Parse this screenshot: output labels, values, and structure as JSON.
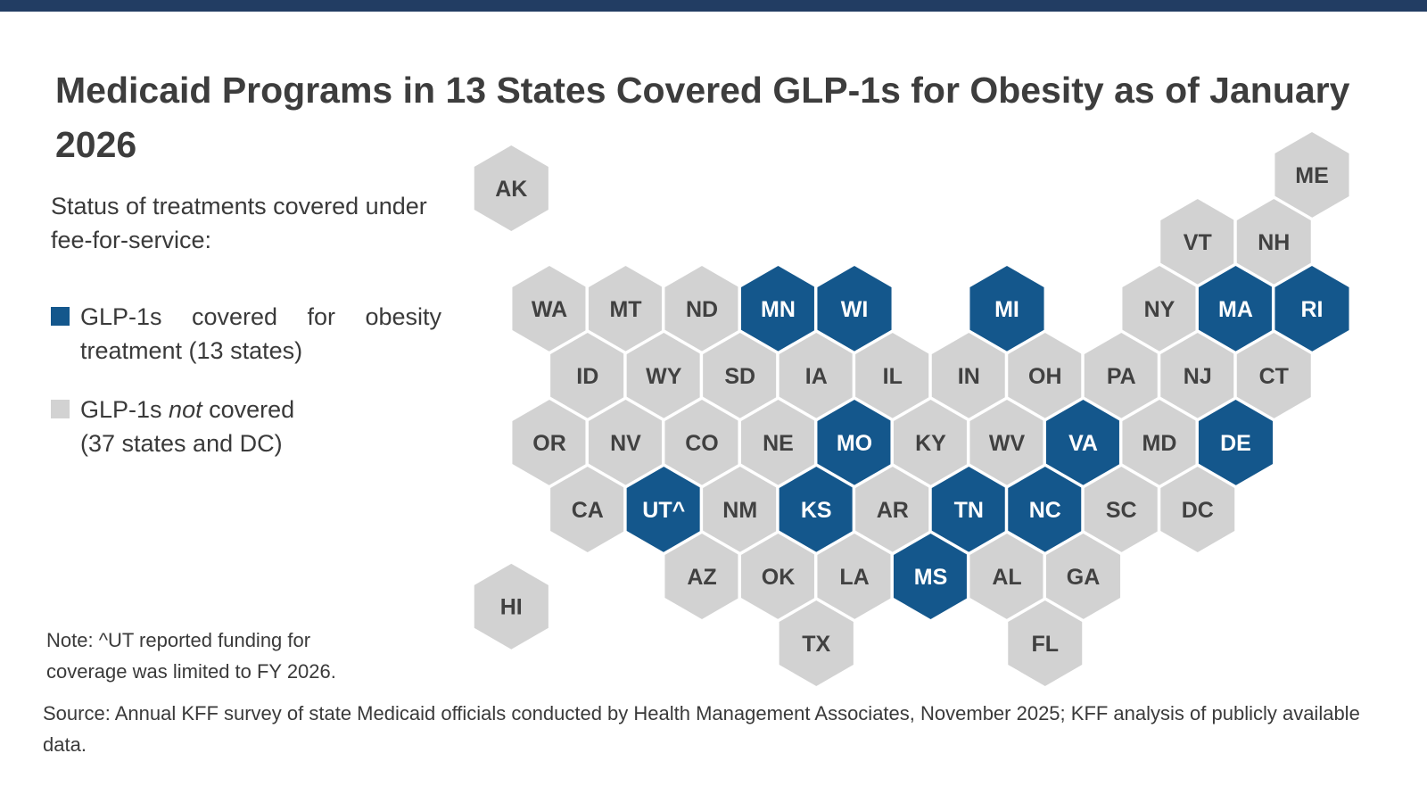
{
  "title": "Medicaid Programs in 13 States Covered GLP-1s for Obesity as of January 2026",
  "legend": {
    "heading": "Status of treatments covered under fee-for-service:",
    "covered_label": "GLP-1s covered for obesity treatment (13 states)",
    "not_covered": {
      "part1": "GLP-1s ",
      "italic": "not",
      "part2": " covered (37 states and DC)"
    }
  },
  "note": "Note: ^UT reported funding for coverage was limited to FY 2026.",
  "source": "Source: Annual KFF survey of state Medicaid officials conducted by Health Management Associates, November 2025; KFF analysis of publicly available data.",
  "chart_data": {
    "type": "hexmap",
    "subtype": "us-state-tile-map",
    "title": "Medicaid Programs in 13 States Covered GLP-1s for Obesity as of January 2026",
    "legend": [
      {
        "label": "GLP-1s covered for obesity treatment (13 states)",
        "color": "#14578c"
      },
      {
        "label": "GLP-1s not covered (37 states and DC)",
        "color": "#d2d2d2"
      }
    ],
    "colors": {
      "topbar": "#223d63",
      "covered": "#14578c",
      "not_covered": "#d2d2d2",
      "label_on_gray": "#414141",
      "label_on_blue": "#ffffff"
    },
    "covered_count": 13,
    "not_covered_count_text": "37 states and DC",
    "covered_states": [
      "MN",
      "WI",
      "MI",
      "MA",
      "RI",
      "MO",
      "VA",
      "DE",
      "UT",
      "KS",
      "TN",
      "NC",
      "MS"
    ],
    "states": [
      {
        "abbr": "AK",
        "label": "AK",
        "row": 0.2,
        "col": -0.5,
        "covered": false
      },
      {
        "abbr": "ME",
        "label": "ME",
        "row": 0,
        "col": 10,
        "covered": false
      },
      {
        "abbr": "VT",
        "label": "VT",
        "row": 1,
        "col": 8.5,
        "covered": false
      },
      {
        "abbr": "NH",
        "label": "NH",
        "row": 1,
        "col": 9.5,
        "covered": false
      },
      {
        "abbr": "WA",
        "label": "WA",
        "row": 2,
        "col": 0,
        "covered": false
      },
      {
        "abbr": "MT",
        "label": "MT",
        "row": 2,
        "col": 1,
        "covered": false
      },
      {
        "abbr": "ND",
        "label": "ND",
        "row": 2,
        "col": 2,
        "covered": false
      },
      {
        "abbr": "MN",
        "label": "MN",
        "row": 2,
        "col": 3,
        "covered": true
      },
      {
        "abbr": "WI",
        "label": "WI",
        "row": 2,
        "col": 4,
        "covered": true
      },
      {
        "abbr": "MI",
        "label": "MI",
        "row": 2,
        "col": 6,
        "covered": true
      },
      {
        "abbr": "NY",
        "label": "NY",
        "row": 2,
        "col": 8,
        "covered": false
      },
      {
        "abbr": "MA",
        "label": "MA",
        "row": 2,
        "col": 9,
        "covered": true
      },
      {
        "abbr": "RI",
        "label": "RI",
        "row": 2,
        "col": 10,
        "covered": true
      },
      {
        "abbr": "ID",
        "label": "ID",
        "row": 3,
        "col": 0.5,
        "covered": false
      },
      {
        "abbr": "WY",
        "label": "WY",
        "row": 3,
        "col": 1.5,
        "covered": false
      },
      {
        "abbr": "SD",
        "label": "SD",
        "row": 3,
        "col": 2.5,
        "covered": false
      },
      {
        "abbr": "IA",
        "label": "IA",
        "row": 3,
        "col": 3.5,
        "covered": false
      },
      {
        "abbr": "IL",
        "label": "IL",
        "row": 3,
        "col": 4.5,
        "covered": false
      },
      {
        "abbr": "IN",
        "label": "IN",
        "row": 3,
        "col": 5.5,
        "covered": false
      },
      {
        "abbr": "OH",
        "label": "OH",
        "row": 3,
        "col": 6.5,
        "covered": false
      },
      {
        "abbr": "PA",
        "label": "PA",
        "row": 3,
        "col": 7.5,
        "covered": false
      },
      {
        "abbr": "NJ",
        "label": "NJ",
        "row": 3,
        "col": 8.5,
        "covered": false
      },
      {
        "abbr": "CT",
        "label": "CT",
        "row": 3,
        "col": 9.5,
        "covered": false
      },
      {
        "abbr": "OR",
        "label": "OR",
        "row": 4,
        "col": 0,
        "covered": false
      },
      {
        "abbr": "NV",
        "label": "NV",
        "row": 4,
        "col": 1,
        "covered": false
      },
      {
        "abbr": "CO",
        "label": "CO",
        "row": 4,
        "col": 2,
        "covered": false
      },
      {
        "abbr": "NE",
        "label": "NE",
        "row": 4,
        "col": 3,
        "covered": false
      },
      {
        "abbr": "MO",
        "label": "MO",
        "row": 4,
        "col": 4,
        "covered": true
      },
      {
        "abbr": "KY",
        "label": "KY",
        "row": 4,
        "col": 5,
        "covered": false
      },
      {
        "abbr": "WV",
        "label": "WV",
        "row": 4,
        "col": 6,
        "covered": false
      },
      {
        "abbr": "VA",
        "label": "VA",
        "row": 4,
        "col": 7,
        "covered": true
      },
      {
        "abbr": "MD",
        "label": "MD",
        "row": 4,
        "col": 8,
        "covered": false
      },
      {
        "abbr": "DE",
        "label": "DE",
        "row": 4,
        "col": 9,
        "covered": true
      },
      {
        "abbr": "CA",
        "label": "CA",
        "row": 5,
        "col": 0.5,
        "covered": false
      },
      {
        "abbr": "UT",
        "label": "UT^",
        "row": 5,
        "col": 1.5,
        "covered": true
      },
      {
        "abbr": "NM",
        "label": "NM",
        "row": 5,
        "col": 2.5,
        "covered": false
      },
      {
        "abbr": "KS",
        "label": "KS",
        "row": 5,
        "col": 3.5,
        "covered": true
      },
      {
        "abbr": "AR",
        "label": "AR",
        "row": 5,
        "col": 4.5,
        "covered": false
      },
      {
        "abbr": "TN",
        "label": "TN",
        "row": 5,
        "col": 5.5,
        "covered": true
      },
      {
        "abbr": "NC",
        "label": "NC",
        "row": 5,
        "col": 6.5,
        "covered": true
      },
      {
        "abbr": "SC",
        "label": "SC",
        "row": 5,
        "col": 7.5,
        "covered": false
      },
      {
        "abbr": "DC",
        "label": "DC",
        "row": 5,
        "col": 8.5,
        "covered": false
      },
      {
        "abbr": "AZ",
        "label": "AZ",
        "row": 6,
        "col": 2,
        "covered": false
      },
      {
        "abbr": "OK",
        "label": "OK",
        "row": 6,
        "col": 3,
        "covered": false
      },
      {
        "abbr": "LA",
        "label": "LA",
        "row": 6,
        "col": 4,
        "covered": false
      },
      {
        "abbr": "MS",
        "label": "MS",
        "row": 6,
        "col": 5,
        "covered": true
      },
      {
        "abbr": "AL",
        "label": "AL",
        "row": 6,
        "col": 6,
        "covered": false
      },
      {
        "abbr": "GA",
        "label": "GA",
        "row": 6,
        "col": 7,
        "covered": false
      },
      {
        "abbr": "HI",
        "label": "HI",
        "row": 6.45,
        "col": -0.5,
        "covered": false
      },
      {
        "abbr": "TX",
        "label": "TX",
        "row": 7,
        "col": 3.5,
        "covered": false
      },
      {
        "abbr": "FL",
        "label": "FL",
        "row": 7,
        "col": 6.5,
        "covered": false
      }
    ]
  }
}
